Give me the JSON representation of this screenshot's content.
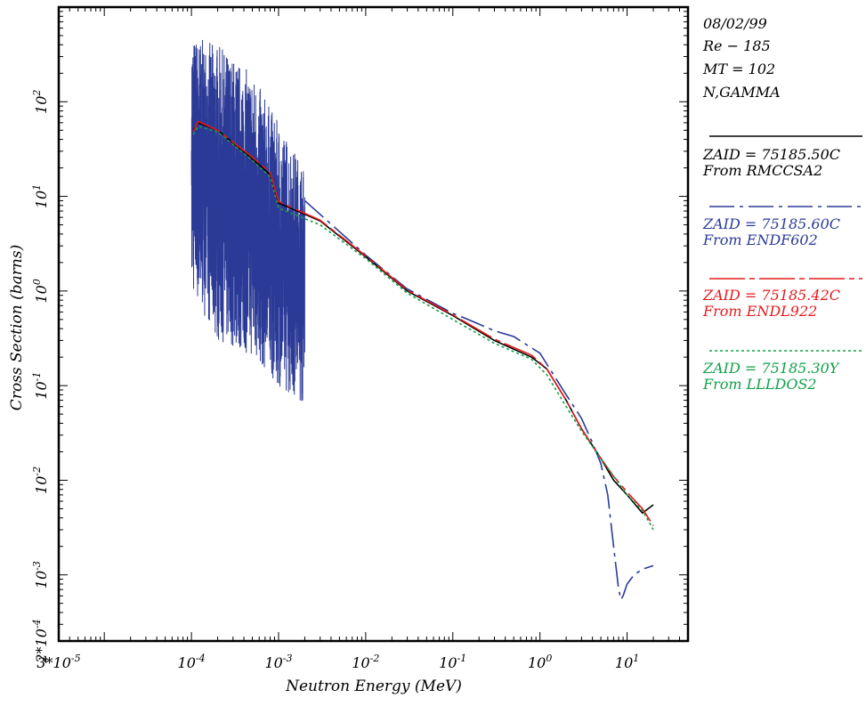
{
  "header": {
    "date": "08/02/99",
    "material": "Re − 185",
    "mt": "MT = 102",
    "reaction": "N,GAMMA"
  },
  "colors": {
    "rmccsa2": "#000000",
    "endf602": "#2b3a96",
    "endl922": "#e41a1c",
    "llldos2": "#12a04a"
  },
  "legend": [
    {
      "zaid": "ZAID = 75185.50C",
      "source": "From RMCCSA2",
      "color": "#000000",
      "dash": "solid"
    },
    {
      "zaid": "ZAID = 75185.60C",
      "source": "From ENDF602",
      "color": "#2b3a96",
      "dash": "dashdot"
    },
    {
      "zaid": "ZAID = 75185.42C",
      "source": "From ENDL922",
      "color": "#e41a1c",
      "dash": "longdashdot"
    },
    {
      "zaid": "ZAID = 75185.30Y",
      "source": "From LLLDOS2",
      "color": "#12a04a",
      "dash": "dotted"
    }
  ],
  "chart_data": {
    "type": "line",
    "xlabel": "Neutron Energy (MeV)",
    "ylabel": "Cross Section (barns)",
    "xscale": "log",
    "yscale": "log",
    "xlim": [
      3e-06,
      50
    ],
    "ylim": [
      0.0002,
      1000
    ],
    "x_tick_labels": [
      {
        "label": "3*10",
        "sup": "-5",
        "value": 3e-06
      },
      {
        "label": "10",
        "sup": "-4",
        "value": 0.0001
      },
      {
        "label": "10",
        "sup": "-3",
        "value": 0.001
      },
      {
        "label": "10",
        "sup": "-2",
        "value": 0.01
      },
      {
        "label": "10",
        "sup": "-1",
        "value": 0.1
      },
      {
        "label": "10",
        "sup": "0",
        "value": 1
      },
      {
        "label": "10",
        "sup": "1",
        "value": 10
      }
    ],
    "y_tick_labels": [
      {
        "label": "2*10",
        "sup": "-4",
        "value": 0.0002
      },
      {
        "label": "10",
        "sup": "-3",
        "value": 0.001
      },
      {
        "label": "10",
        "sup": "-2",
        "value": 0.01
      },
      {
        "label": "10",
        "sup": "-1",
        "value": 0.1
      },
      {
        "label": "10",
        "sup": "0",
        "value": 1
      },
      {
        "label": "10",
        "sup": "1",
        "value": 10
      },
      {
        "label": "10",
        "sup": "2",
        "value": 100
      }
    ],
    "series": [
      {
        "name": "From RMCCSA2",
        "color": "#000000",
        "x": [
          0.000105,
          0.00012,
          0.0002,
          0.0005,
          0.0008,
          0.001,
          0.003,
          0.01,
          0.03,
          0.1,
          0.3,
          0.8,
          1.2,
          2.0,
          3.0,
          5.0,
          7.0,
          10.0,
          15.0,
          20.0
        ],
        "y": [
          50,
          60,
          50,
          25,
          17,
          8.5,
          5.5,
          2.3,
          1.0,
          0.55,
          0.3,
          0.2,
          0.15,
          0.07,
          0.035,
          0.017,
          0.01,
          0.007,
          0.0045,
          0.0055
        ]
      },
      {
        "name": "From ENDF602",
        "color": "#2b3a96",
        "x": [
          0.002,
          0.01,
          0.03,
          0.1,
          0.15,
          0.3,
          0.5,
          1.0,
          1.3,
          2.0,
          3.0,
          4.0,
          5.0,
          6.0,
          7.0,
          8.0,
          8.5,
          9.0,
          10.0,
          12.0,
          15.0,
          20.0
        ],
        "y": [
          9.0,
          2.4,
          1.05,
          0.58,
          0.5,
          0.38,
          0.33,
          0.22,
          0.15,
          0.08,
          0.045,
          0.025,
          0.015,
          0.007,
          0.002,
          0.0007,
          0.00055,
          0.0006,
          0.0008,
          0.001,
          0.00115,
          0.00125
        ],
        "resonance": {
          "x_range": [
            0.0001,
            0.002
          ],
          "upper_envelope": [
            [
              0.0001,
              500
            ],
            [
              0.0002,
              400
            ],
            [
              0.0005,
              200
            ],
            [
              0.001,
              60
            ],
            [
              0.002,
              20
            ]
          ],
          "lower_envelope": [
            [
              0.0001,
              1
            ],
            [
              0.0002,
              0.3
            ],
            [
              0.0005,
              0.2
            ],
            [
              0.001,
              0.1
            ],
            [
              0.002,
              0.06
            ]
          ]
        }
      },
      {
        "name": "From ENDL922",
        "color": "#e41a1c",
        "x": [
          0.000105,
          0.00012,
          0.0002,
          0.0005,
          0.0008,
          0.001,
          0.003,
          0.01,
          0.03,
          0.1,
          0.3,
          0.8,
          1.2,
          2.0,
          3.0,
          5.0,
          7.0,
          10.0,
          15.0,
          20.0
        ],
        "y": [
          48,
          62,
          50,
          26,
          18,
          8.8,
          5.6,
          2.35,
          1.02,
          0.56,
          0.31,
          0.21,
          0.15,
          0.07,
          0.035,
          0.017,
          0.011,
          0.0075,
          0.005,
          0.0033
        ]
      },
      {
        "name": "From LLLDOS2",
        "color": "#12a04a",
        "x": [
          0.000105,
          0.00012,
          0.0002,
          0.0005,
          0.0008,
          0.001,
          0.003,
          0.01,
          0.03,
          0.1,
          0.3,
          0.8,
          1.2,
          2.0,
          3.0,
          5.0,
          7.0,
          10.0,
          15.0,
          20.0
        ],
        "y": [
          45,
          55,
          48,
          24,
          16,
          7.5,
          5.0,
          2.2,
          0.95,
          0.5,
          0.28,
          0.19,
          0.13,
          0.06,
          0.033,
          0.017,
          0.011,
          0.007,
          0.0048,
          0.003
        ]
      }
    ]
  }
}
